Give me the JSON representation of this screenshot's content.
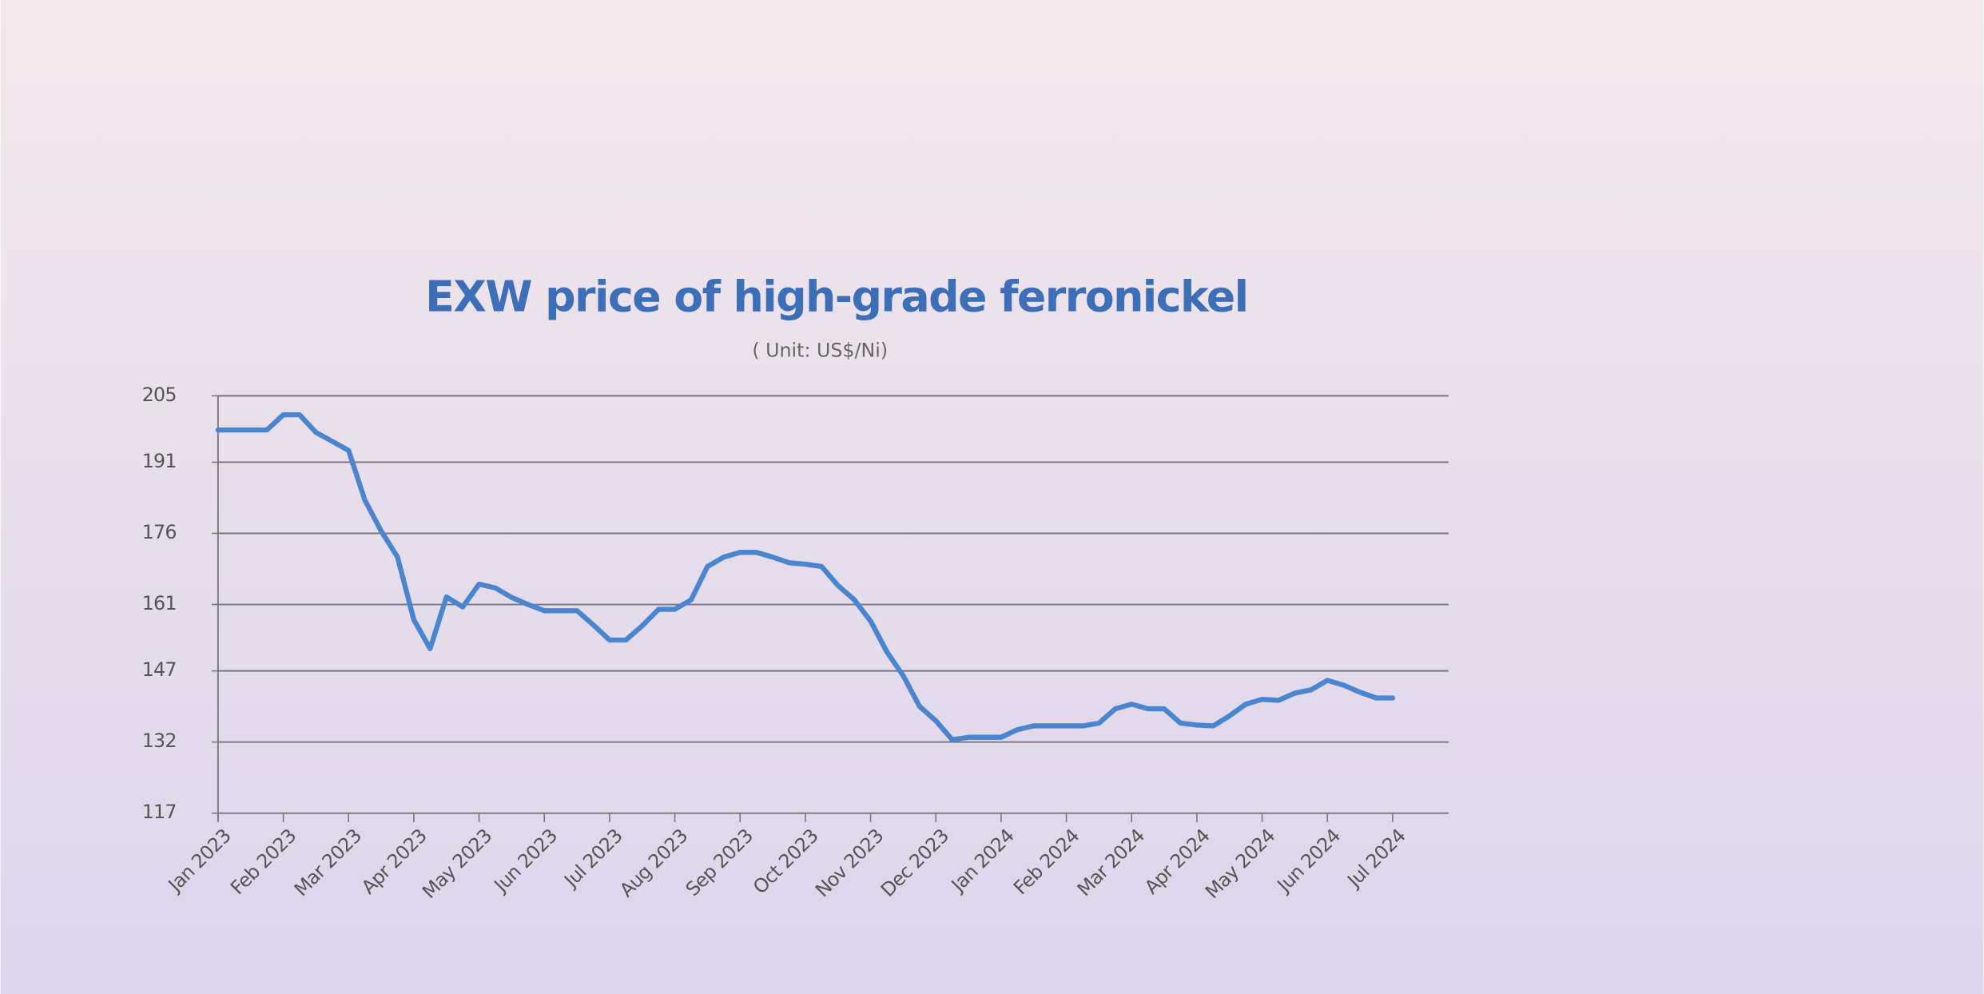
{
  "chart_data": {
    "type": "line",
    "title": "EXW price of high-grade ferronickel",
    "subtitle": "( Unit: US$/Ni)",
    "categories": [
      "Jan 2023",
      null,
      null,
      null,
      "Feb 2023",
      null,
      null,
      null,
      "Mar 2023",
      null,
      null,
      null,
      "Apr 2023",
      null,
      null,
      null,
      "May 2023",
      null,
      null,
      null,
      "Jun 2023",
      null,
      null,
      null,
      "Jul 2023",
      null,
      null,
      null,
      "Aug 2023",
      null,
      null,
      null,
      "Sep 2023",
      null,
      null,
      null,
      "Oct 2023",
      null,
      null,
      null,
      "Nov 2023",
      null,
      null,
      null,
      "Dec 2023",
      null,
      null,
      null,
      "Jan 2024",
      null,
      null,
      null,
      "Feb 2024",
      null,
      null,
      null,
      "Mar 2024",
      null,
      null,
      null,
      "Apr 2024",
      null,
      null,
      null,
      "May 2024",
      null,
      null,
      null,
      "Jun 2024",
      null,
      null,
      null,
      "Jul 2024"
    ],
    "values": [
      197.8,
      197.8,
      197.8,
      197.8,
      201,
      201,
      197.3,
      195.4,
      193.5,
      183,
      176.5,
      171,
      157.8,
      151.7,
      162.6,
      160.5,
      165.3,
      164.5,
      162.5,
      161,
      159.7,
      159.7,
      159.7,
      156.7,
      153.5,
      153.5,
      156.5,
      160,
      160,
      162,
      169,
      171,
      172,
      172,
      171,
      169.8,
      169.5,
      169,
      165,
      162,
      157.5,
      151,
      146,
      139.5,
      136.5,
      132.5,
      133,
      133,
      133,
      134.6,
      135.4,
      135.4,
      135.4,
      135.4,
      136,
      139,
      140,
      139,
      139,
      136,
      135.6,
      135.4,
      137.5,
      140,
      141,
      140.8,
      142.3,
      143,
      145,
      144,
      142.5,
      141.3,
      141.3
    ],
    "color": "#4a86d0",
    "ylim": [
      117,
      205
    ],
    "yticks": [
      117,
      132,
      147,
      161,
      176,
      191,
      205
    ],
    "grid": true
  }
}
